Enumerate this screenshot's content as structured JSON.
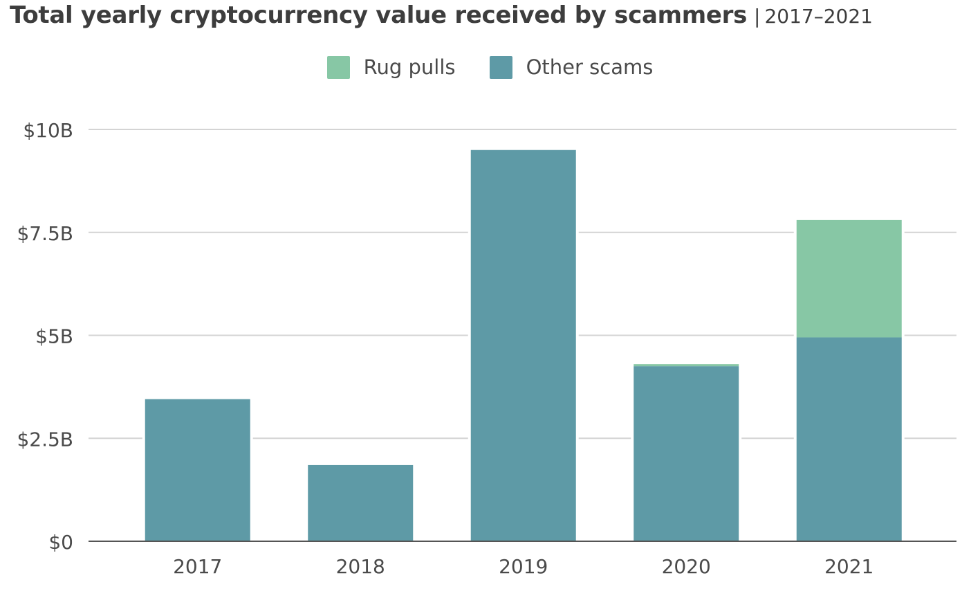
{
  "chart_data": {
    "type": "bar",
    "stacked": true,
    "title": "Total yearly cryptocurrency value received by scammers",
    "subtitle": "2017–2021",
    "categories": [
      "2017",
      "2018",
      "2019",
      "2020",
      "2021"
    ],
    "series": [
      {
        "name": "Other scams",
        "color": "#5e9aa6",
        "values": [
          3.45,
          1.85,
          9.5,
          4.25,
          4.95
        ]
      },
      {
        "name": "Rug pulls",
        "color": "#87c7a5",
        "values": [
          0,
          0,
          0,
          0.05,
          2.85
        ]
      }
    ],
    "ylim": [
      0,
      10
    ],
    "yticks": [
      {
        "value": 0,
        "label": "$0"
      },
      {
        "value": 2.5,
        "label": "$2.5B"
      },
      {
        "value": 5,
        "label": "$5B"
      },
      {
        "value": 7.5,
        "label": "$7.5B"
      },
      {
        "value": 10,
        "label": "$10B"
      }
    ],
    "legend": {
      "position": "top-center",
      "items": [
        {
          "label": "Rug pulls",
          "color": "#87c7a5"
        },
        {
          "label": "Other scams",
          "color": "#5e9aa6"
        }
      ]
    },
    "grid": true,
    "xlabel": "",
    "ylabel": ""
  }
}
